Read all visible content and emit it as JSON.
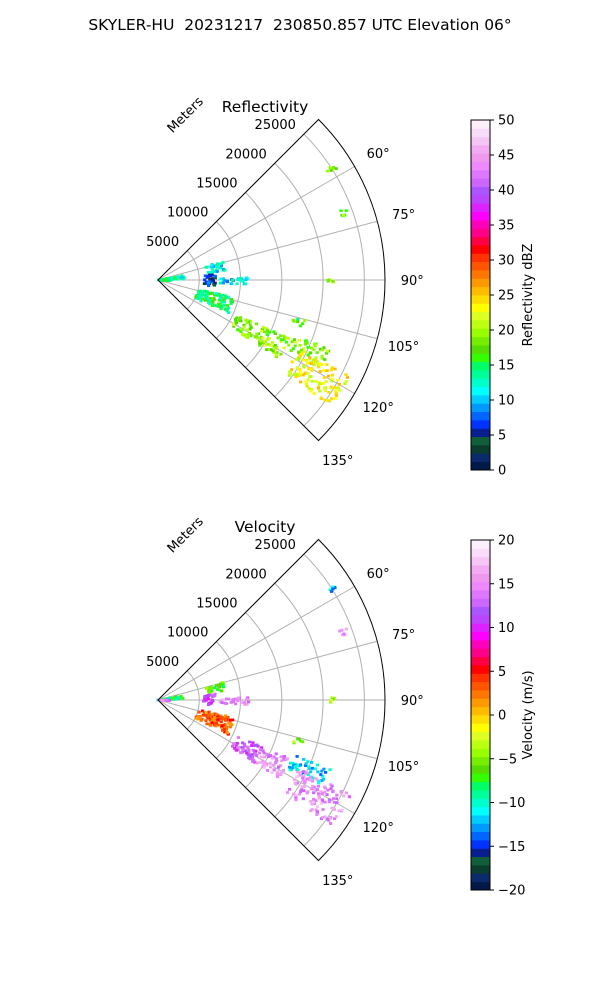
{
  "suptitle": "SKYLER-HU  20231217  230850.857 UTC Elevation 06°",
  "chart_data": [
    {
      "type": "heatmap",
      "title": "Reflectivity",
      "radial_label": "Meters",
      "radial_ticks": [
        5000,
        10000,
        15000,
        20000,
        25000
      ],
      "radial_tick_labels": [
        "5000",
        "10000",
        "15000",
        "20000",
        "25000"
      ],
      "range_max": 27500,
      "azimuth_range_deg": [
        45,
        135
      ],
      "angle_ticks": [
        60,
        75,
        90,
        105,
        120,
        135
      ],
      "angle_tick_labels": [
        "60°",
        "75°",
        "90°",
        "105°",
        "120°",
        "135°"
      ],
      "grid": true,
      "colorbar": {
        "label": "Reflectivity dBZ",
        "range": [
          0,
          50
        ],
        "ticks": [
          0,
          5,
          10,
          15,
          20,
          25,
          30,
          35,
          40,
          45,
          50
        ],
        "tick_labels": [
          "0",
          "5",
          "10",
          "15",
          "20",
          "25",
          "30",
          "35",
          "40",
          "45",
          "50"
        ],
        "colors": [
          "#021a4a",
          "#0a2a6b",
          "#0b3d2e",
          "#115e3a",
          "#0a1f8f",
          "#0033ff",
          "#0066ff",
          "#0099ff",
          "#00ccff",
          "#00ffff",
          "#00ffcc",
          "#00ff99",
          "#00ff66",
          "#33ff00",
          "#55dd00",
          "#77ee00",
          "#99ff00",
          "#bbff11",
          "#ddff22",
          "#ffff00",
          "#ffdd00",
          "#ffbb00",
          "#ff9900",
          "#ff7700",
          "#ff5500",
          "#ff3300",
          "#ff0000",
          "#ff0044",
          "#ff0088",
          "#ff00bb",
          "#ff00ff",
          "#dd22ff",
          "#bb44ff",
          "#aa55ff",
          "#cc66ff",
          "#dd77ff",
          "#ee88ff",
          "#ee99ee",
          "#f2aaf2",
          "#f5c6f5",
          "#f9dcf9",
          "#fdf0fd"
        ]
      },
      "echo_regions": [
        {
          "az": [
            80,
            88
          ],
          "range": [
            0,
            3200
          ],
          "value": 13
        },
        {
          "az": [
            90,
            95
          ],
          "range": [
            0,
            1500
          ],
          "value": 16
        },
        {
          "az": [
            74,
            82
          ],
          "range": [
            6000,
            8200
          ],
          "value": 12
        },
        {
          "az": [
            84,
            97
          ],
          "range": [
            5500,
            7000
          ],
          "value": 6
        },
        {
          "az": [
            88,
            93
          ],
          "range": [
            7500,
            11000
          ],
          "value": 11
        },
        {
          "az": [
            103,
            116
          ],
          "range": [
            5000,
            9500
          ],
          "value": 15
        },
        {
          "az": [
            114,
            123
          ],
          "range": [
            10500,
            17500
          ],
          "value": 19
        },
        {
          "az": [
            112,
            118
          ],
          "range": [
            17500,
            22500
          ],
          "value": 19
        },
        {
          "az": [
            116,
            126
          ],
          "range": [
            19000,
            26000
          ],
          "value": 23
        },
        {
          "az": [
            105,
            108
          ],
          "range": [
            17000,
            18500
          ],
          "value": 18
        },
        {
          "az": [
            89,
            91
          ],
          "range": [
            20500,
            21500
          ],
          "value": 20
        },
        {
          "az": [
            69,
            71
          ],
          "range": [
            23500,
            24500
          ],
          "value": 18
        },
        {
          "az": [
            56,
            58
          ],
          "range": [
            24000,
            25500
          ],
          "value": 17
        }
      ]
    },
    {
      "type": "heatmap",
      "title": "Velocity",
      "radial_label": "Meters",
      "radial_ticks": [
        5000,
        10000,
        15000,
        20000,
        25000
      ],
      "radial_tick_labels": [
        "5000",
        "10000",
        "15000",
        "20000",
        "25000"
      ],
      "range_max": 27500,
      "azimuth_range_deg": [
        45,
        135
      ],
      "angle_ticks": [
        60,
        75,
        90,
        105,
        120,
        135
      ],
      "angle_tick_labels": [
        "60°",
        "75°",
        "90°",
        "105°",
        "120°",
        "135°"
      ],
      "grid": true,
      "colorbar": {
        "label": "Velocity (m/s)",
        "range": [
          -20,
          20
        ],
        "ticks": [
          -20,
          -15,
          -10,
          -5,
          0,
          5,
          10,
          15,
          20
        ],
        "tick_labels": [
          "−20",
          "−15",
          "−10",
          "−5",
          "0",
          "5",
          "10",
          "15",
          "20"
        ],
        "colors": [
          "#021a4a",
          "#0a2a6b",
          "#0b3d2e",
          "#115e3a",
          "#0a1f8f",
          "#0033ff",
          "#0066ff",
          "#0099ff",
          "#00ccff",
          "#00ffff",
          "#00ffcc",
          "#00ff99",
          "#00ff66",
          "#33ff00",
          "#55dd00",
          "#77ee00",
          "#99ff00",
          "#bbff11",
          "#ddff22",
          "#ffff00",
          "#ffdd00",
          "#ffbb00",
          "#ff9900",
          "#ff7700",
          "#ff5500",
          "#ff3300",
          "#ff0000",
          "#ff0044",
          "#ff0088",
          "#ff00bb",
          "#ff00ff",
          "#dd22ff",
          "#bb44ff",
          "#aa55ff",
          "#cc66ff",
          "#dd77ff",
          "#ee88ff",
          "#ee99ee",
          "#f2aaf2",
          "#f5c6f5",
          "#f9dcf9",
          "#fdf0fd"
        ]
      },
      "echo_regions": [
        {
          "az": [
            80,
            88
          ],
          "range": [
            0,
            3200
          ],
          "value": -8
        },
        {
          "az": [
            90,
            95
          ],
          "range": [
            0,
            1500
          ],
          "value": 14
        },
        {
          "az": [
            74,
            82
          ],
          "range": [
            6000,
            8200
          ],
          "value": -6
        },
        {
          "az": [
            84,
            97
          ],
          "range": [
            5500,
            7000
          ],
          "value": 11
        },
        {
          "az": [
            88,
            93
          ],
          "range": [
            7500,
            11000
          ],
          "value": 15
        },
        {
          "az": [
            103,
            116
          ],
          "range": [
            5000,
            9500
          ],
          "value": 3
        },
        {
          "az": [
            114,
            123
          ],
          "range": [
            10500,
            14000
          ],
          "value": 12
        },
        {
          "az": [
            114,
            123
          ],
          "range": [
            14000,
            17500
          ],
          "value": 15
        },
        {
          "az": [
            112,
            118
          ],
          "range": [
            17500,
            22500
          ],
          "value": -12
        },
        {
          "az": [
            116,
            126
          ],
          "range": [
            19000,
            26000
          ],
          "value": 15
        },
        {
          "az": [
            105,
            108
          ],
          "range": [
            17000,
            18500
          ],
          "value": -5
        },
        {
          "az": [
            89,
            91
          ],
          "range": [
            20500,
            21500
          ],
          "value": -4
        },
        {
          "az": [
            69,
            71
          ],
          "range": [
            23500,
            24500
          ],
          "value": 15
        },
        {
          "az": [
            56,
            58
          ],
          "range": [
            24000,
            25500
          ],
          "value": -12
        }
      ]
    }
  ]
}
